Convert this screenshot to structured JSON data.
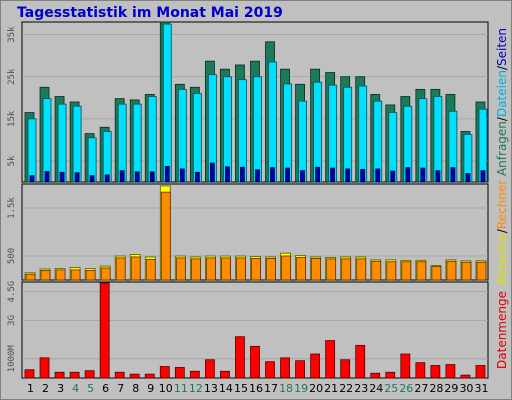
{
  "chart_data": {
    "type": "bar",
    "title": "Tagesstatistik im Monat Mai 2019",
    "categories": [
      "1",
      "2",
      "3",
      "4",
      "5",
      "6",
      "7",
      "8",
      "9",
      "10",
      "11",
      "12",
      "13",
      "14",
      "15",
      "16",
      "17",
      "18",
      "19",
      "20",
      "21",
      "22",
      "23",
      "24",
      "25",
      "26",
      "27",
      "28",
      "29",
      "30",
      "31"
    ],
    "weekend_days": [
      "4",
      "5",
      "11",
      "12",
      "18",
      "19",
      "25",
      "26"
    ],
    "colors": {
      "anfragen": "#1a7a5a",
      "dateien": "#00e0ff",
      "seiten": "#0000b0",
      "rechner": "#ff8c00",
      "besuche": "#ffff00",
      "datenmenge": "#ff0000",
      "weekday_label": "#000000",
      "weekend_label": "#1a7a5a"
    },
    "panels": [
      {
        "id": "hits",
        "ylim": [
          0,
          38000
        ],
        "yticks": [
          "5k",
          "15k",
          "25k",
          "35k"
        ],
        "ytick_values": [
          5000,
          15000,
          25000,
          35000
        ],
        "side_labels": [
          {
            "text": "Anfragen",
            "color": "#1a7a5a"
          },
          {
            "text": "/",
            "color": "#000000"
          },
          {
            "text": "Dateien",
            "color": "#00b0e0"
          },
          {
            "text": "/",
            "color": "#000000"
          },
          {
            "text": "Seiten",
            "color": "#0000b0"
          }
        ],
        "series": [
          {
            "name": "Anfragen",
            "values": [
              16500,
              22500,
              20300,
              19000,
              11500,
              13000,
              19800,
              19500,
              20800,
              38000,
              23200,
              22500,
              28700,
              26800,
              27800,
              28700,
              33300,
              26800,
              23200,
              26800,
              26000,
              25000,
              25000,
              20800,
              18300,
              20300,
              22000,
              22000,
              20800,
              12000,
              19000
            ]
          },
          {
            "name": "Dateien",
            "values": [
              15000,
              19800,
              18500,
              18000,
              10500,
              12000,
              18500,
              18500,
              20300,
              37500,
              22000,
              21000,
              25500,
              25000,
              24300,
              25000,
              28500,
              23300,
              19200,
              23700,
              23000,
              22500,
              22800,
              19200,
              16500,
              18000,
              19800,
              20300,
              16800,
              11300,
              17300
            ]
          },
          {
            "name": "Seiten",
            "values": [
              1500,
              2500,
              2300,
              2200,
              1500,
              1700,
              2700,
              2400,
              2400,
              3700,
              3100,
              2300,
              4500,
              3600,
              3500,
              2900,
              3400,
              3300,
              2700,
              3500,
              3300,
              3100,
              3000,
              3100,
              2600,
              3400,
              3300,
              2700,
              3400,
              2000,
              2700
            ]
          }
        ]
      },
      {
        "id": "visits",
        "ylim": [
          0,
          2000
        ],
        "yticks": [
          "500",
          "1.5k"
        ],
        "ytick_values": [
          500,
          1500
        ],
        "side_labels": [
          {
            "text": "Besuche",
            "color": "#e0e000"
          },
          {
            "text": "/",
            "color": "#000000"
          },
          {
            "text": "Rechner",
            "color": "#ff8c00"
          }
        ],
        "series": [
          {
            "name": "Besuche",
            "values": [
              150,
              230,
              240,
              260,
              240,
              290,
              500,
              530,
              480,
              1960,
              500,
              480,
              500,
              500,
              500,
              490,
              480,
              560,
              510,
              480,
              470,
              480,
              480,
              420,
              420,
              410,
              410,
              300,
              420,
              400,
              400
            ]
          },
          {
            "name": "Rechner",
            "values": [
              120,
              200,
              210,
              210,
              200,
              250,
              460,
              480,
              430,
              1830,
              460,
              440,
              460,
              460,
              460,
              450,
              450,
              500,
              470,
              450,
              440,
              440,
              440,
              390,
              380,
              380,
              380,
              280,
              390,
              370,
              370
            ]
          }
        ]
      },
      {
        "id": "volume",
        "ylim": [
          0,
          5000
        ],
        "yticks": [
          "1000M",
          "3G",
          "4.5G"
        ],
        "ytick_values": [
          1000,
          3000,
          4500
        ],
        "side_labels": [
          {
            "text": "Datenmenge",
            "color": "#dd0000"
          }
        ],
        "series": [
          {
            "name": "Datenmenge",
            "values": [
              430,
              1050,
              300,
              300,
              380,
              4950,
              300,
              200,
              200,
              600,
              550,
              350,
              950,
              350,
              2150,
              1650,
              850,
              1050,
              900,
              1250,
              1950,
              950,
              1700,
              250,
              300,
              1250,
              800,
              650,
              700,
              150,
              650
            ]
          }
        ]
      }
    ]
  }
}
